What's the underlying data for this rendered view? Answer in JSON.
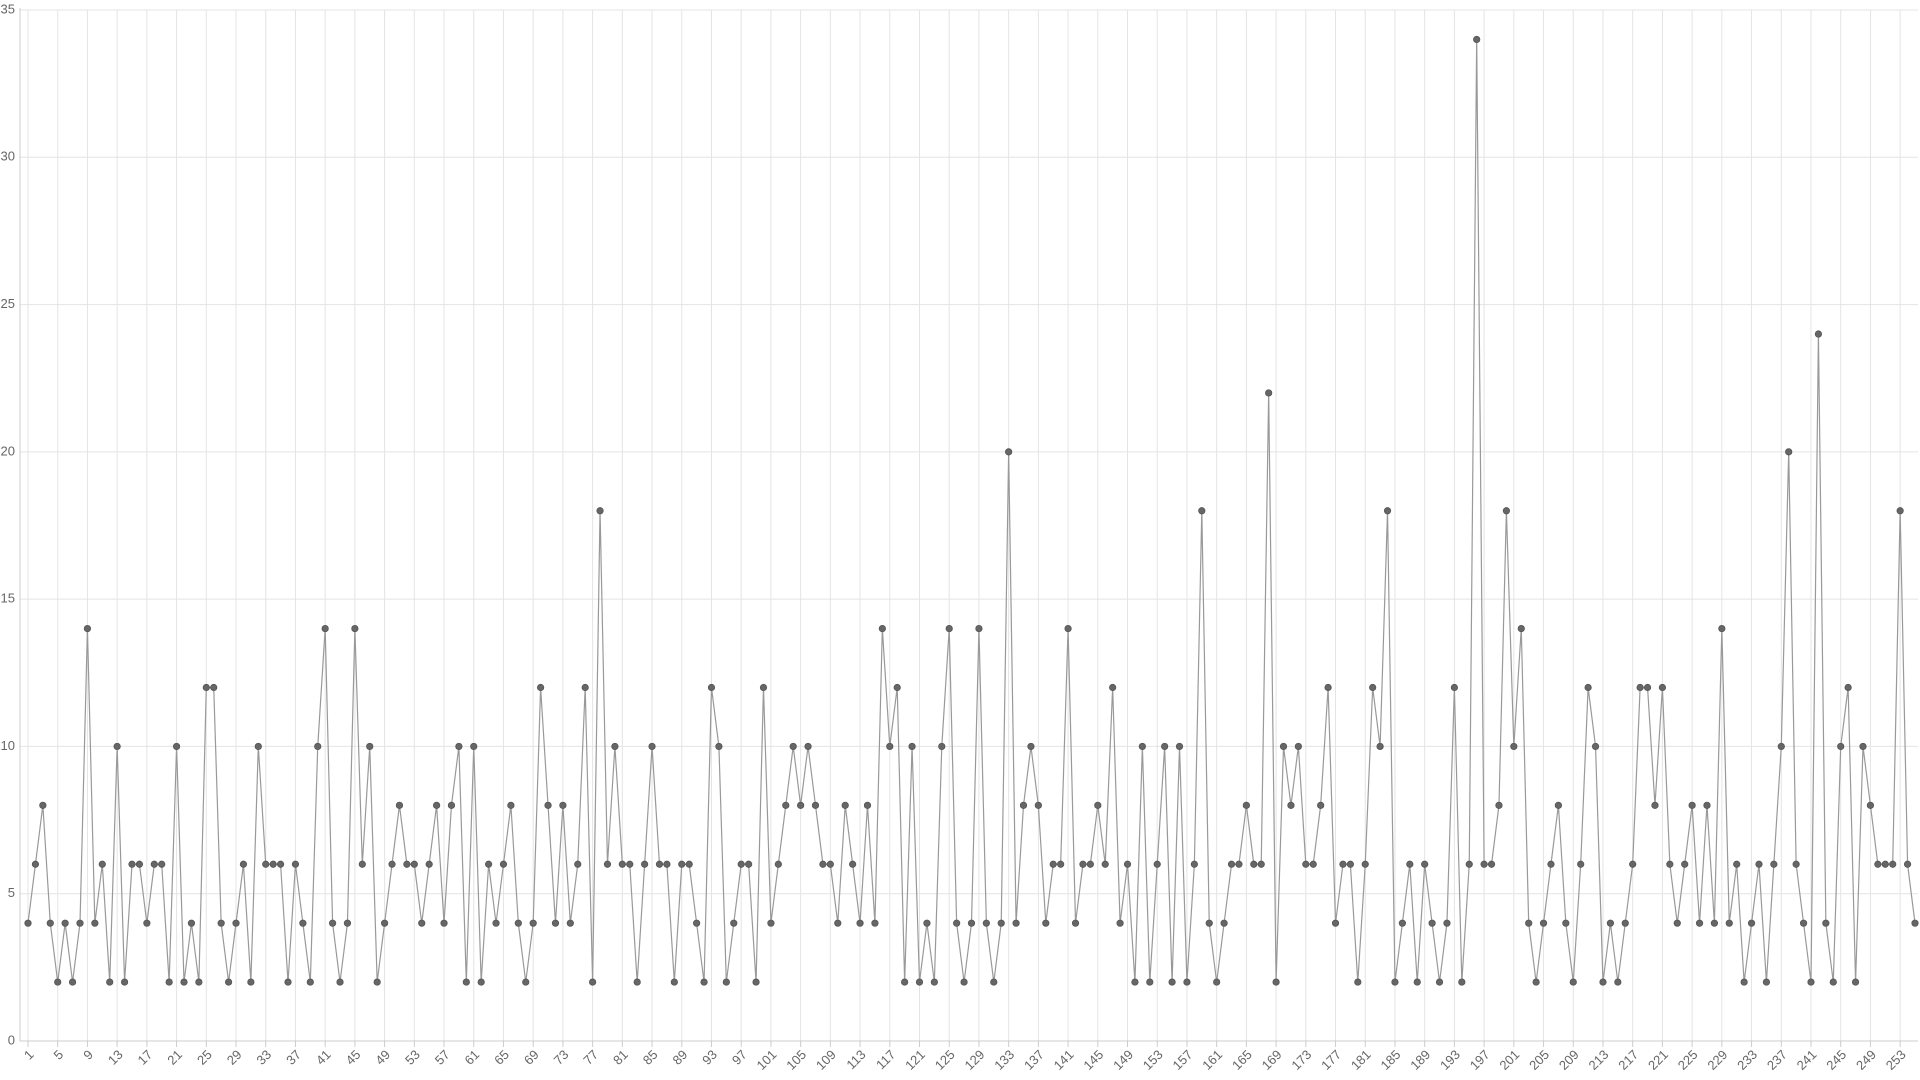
{
  "chart_data": {
    "type": "line",
    "categories": [
      "1",
      null,
      null,
      null,
      "5",
      null,
      null,
      null,
      "9",
      null,
      null,
      null,
      "13",
      null,
      null,
      null,
      "17",
      null,
      null,
      null,
      "21",
      null,
      null,
      null,
      "25",
      null,
      null,
      null,
      "29",
      null,
      null,
      null,
      "33",
      null,
      null,
      null,
      "37",
      null,
      null,
      null,
      "41",
      null,
      null,
      null,
      "45",
      null,
      null,
      null,
      "49",
      null,
      null,
      null,
      "53",
      null,
      null,
      null,
      "57",
      null,
      null,
      null,
      "61",
      null,
      null,
      null,
      "65",
      null,
      null,
      null,
      "69",
      null,
      null,
      null,
      "73",
      null,
      null,
      null,
      "77",
      null,
      null,
      null,
      "81",
      null,
      null,
      null,
      "85",
      null,
      null,
      null,
      "89",
      null,
      null,
      null,
      "93",
      null,
      null,
      null,
      "97",
      null,
      null,
      null,
      "101",
      null,
      null,
      null,
      "105",
      null,
      null,
      null,
      "109",
      null,
      null,
      null,
      "113",
      null,
      null,
      null,
      "117",
      null,
      null,
      null,
      "121",
      null,
      null,
      null,
      "125",
      null,
      null,
      null,
      "129",
      null,
      null,
      null,
      "133",
      null,
      null,
      null,
      "137",
      null,
      null,
      null,
      "141",
      null,
      null,
      null,
      "145",
      null,
      null,
      null,
      "149",
      null,
      null,
      null,
      "153",
      null,
      null,
      null,
      "157",
      null,
      null,
      null,
      "161",
      null,
      null,
      null,
      "165",
      null,
      null,
      null,
      "169",
      null,
      null,
      null,
      "173",
      null,
      null,
      null,
      "177",
      null,
      null,
      null,
      "181",
      null,
      null,
      null,
      "185",
      null,
      null,
      null,
      "189",
      null,
      null,
      null,
      "193",
      null,
      null,
      null,
      "197",
      null,
      null,
      null,
      "201",
      null,
      null,
      null,
      "205",
      null,
      null,
      null,
      "209",
      null,
      null,
      null,
      "213",
      null,
      null,
      null,
      "217",
      null,
      null,
      null,
      "221",
      null,
      null,
      null,
      "225",
      null,
      null,
      null,
      "229",
      null,
      null,
      null,
      "233",
      null,
      null,
      null,
      "237",
      null,
      null,
      null,
      "241",
      null,
      null,
      null,
      "245",
      null,
      null,
      null,
      "249",
      null,
      null,
      null,
      "253",
      null,
      null
    ],
    "values": [
      4,
      6,
      8,
      4,
      2,
      4,
      2,
      4,
      14,
      4,
      6,
      2,
      10,
      2,
      6,
      6,
      4,
      6,
      6,
      2,
      10,
      2,
      4,
      2,
      12,
      12,
      4,
      2,
      4,
      6,
      2,
      10,
      6,
      6,
      6,
      2,
      6,
      4,
      2,
      10,
      14,
      4,
      2,
      4,
      14,
      6,
      10,
      2,
      4,
      6,
      8,
      6,
      6,
      4,
      6,
      8,
      4,
      8,
      10,
      2,
      10,
      2,
      6,
      4,
      6,
      8,
      4,
      2,
      4,
      12,
      8,
      4,
      8,
      4,
      6,
      12,
      2,
      18,
      6,
      10,
      6,
      6,
      2,
      6,
      10,
      6,
      6,
      2,
      6,
      6,
      4,
      2,
      12,
      10,
      2,
      4,
      6,
      6,
      2,
      12,
      4,
      6,
      8,
      10,
      8,
      10,
      8,
      6,
      6,
      4,
      8,
      6,
      4,
      8,
      4,
      14,
      10,
      12,
      2,
      10,
      2,
      4,
      2,
      10,
      14,
      4,
      2,
      4,
      14,
      4,
      2,
      4,
      20,
      4,
      8,
      10,
      8,
      4,
      6,
      6,
      14,
      4,
      6,
      6,
      8,
      6,
      12,
      4,
      6,
      2,
      10,
      2,
      6,
      10,
      2,
      10,
      2,
      6,
      18,
      4,
      2,
      4,
      6,
      6,
      8,
      6,
      6,
      22,
      2,
      10,
      8,
      10,
      6,
      6,
      8,
      12,
      4,
      6,
      6,
      2,
      6,
      12,
      10,
      18,
      2,
      4,
      6,
      2,
      6,
      4,
      2,
      4,
      12,
      2,
      6,
      34,
      6,
      6,
      8,
      18,
      10,
      14,
      4,
      2,
      4,
      6,
      8,
      4,
      2,
      6,
      12,
      10,
      2,
      4,
      2,
      4,
      6,
      12,
      12,
      8,
      12,
      6,
      4,
      6,
      8,
      4,
      8,
      4,
      14,
      4,
      6,
      2,
      4,
      6,
      2,
      6,
      10,
      20,
      6,
      4,
      2,
      24,
      4,
      2,
      10,
      12,
      2,
      10,
      8,
      6,
      6,
      6,
      18,
      6,
      4
    ],
    "color": "#666666",
    "ylim": [
      0,
      35
    ],
    "yticks": [
      0,
      5,
      10,
      15,
      20,
      25,
      30,
      35
    ],
    "grid": true
  }
}
